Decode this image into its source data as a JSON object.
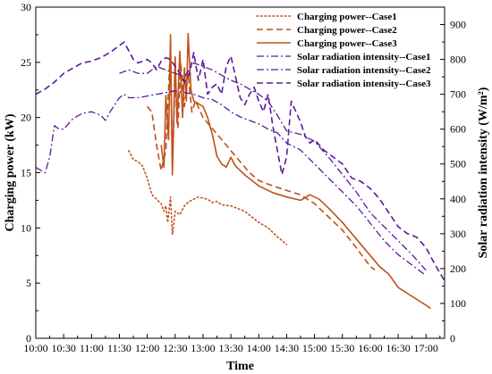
{
  "chart_data": {
    "type": "line",
    "xlabel": "Time",
    "ylabel_left": "Charging power (kW)",
    "ylabel_right": "Solar radiation intensity (W/m²)",
    "x_ticks": [
      "10:00",
      "10:30",
      "11:00",
      "11:30",
      "12:00",
      "12:30",
      "13:00",
      "13:30",
      "14:00",
      "14:30",
      "15:00",
      "15:30",
      "16:00",
      "16:30",
      "17:00"
    ],
    "xlim": [
      "10:00",
      "17:20"
    ],
    "ylim_left": [
      0,
      30
    ],
    "ylim_right": [
      0,
      950
    ],
    "yticks_left": [
      "0",
      "5",
      "10",
      "15",
      "20",
      "25",
      "30"
    ],
    "yticks_right": [
      "0",
      "100",
      "200",
      "300",
      "400",
      "500",
      "600",
      "700",
      "800",
      "900"
    ],
    "legend_position": "top-right",
    "grid": false,
    "series": [
      {
        "name": "Charging power--Case1",
        "axis": "left",
        "style": "dotted",
        "color": "#c0501a",
        "points": [
          [
            "11:40",
            17.0
          ],
          [
            "11:45",
            16.2
          ],
          [
            "11:50",
            16.0
          ],
          [
            "11:55",
            15.6
          ],
          [
            "12:00",
            14.5
          ],
          [
            "12:05",
            13.0
          ],
          [
            "12:10",
            12.6
          ],
          [
            "12:15",
            12.2
          ],
          [
            "12:18",
            11.5
          ],
          [
            "12:20",
            12.0
          ],
          [
            "12:22",
            10.5
          ],
          [
            "12:25",
            12.8
          ],
          [
            "12:27",
            9.4
          ],
          [
            "12:30",
            11.5
          ],
          [
            "12:35",
            11.2
          ],
          [
            "12:40",
            12.0
          ],
          [
            "12:45",
            12.4
          ],
          [
            "12:50",
            12.6
          ],
          [
            "12:55",
            12.8
          ],
          [
            "13:00",
            12.7
          ],
          [
            "13:05",
            12.6
          ],
          [
            "13:10",
            12.3
          ],
          [
            "13:15",
            12.4
          ],
          [
            "13:20",
            12.1
          ],
          [
            "13:30",
            12.0
          ],
          [
            "13:45",
            11.5
          ],
          [
            "14:00",
            10.5
          ],
          [
            "14:10",
            10.0
          ],
          [
            "14:20",
            9.2
          ],
          [
            "14:30",
            8.5
          ]
        ]
      },
      {
        "name": "Charging power--Case2",
        "axis": "left",
        "style": "dashed",
        "color": "#c0501a",
        "points": [
          [
            "12:00",
            21.0
          ],
          [
            "12:05",
            20.5
          ],
          [
            "12:10",
            17.5
          ],
          [
            "12:15",
            15.2
          ],
          [
            "12:20",
            17.0
          ],
          [
            "12:25",
            26.5
          ],
          [
            "12:27",
            15.5
          ],
          [
            "12:30",
            23.5
          ],
          [
            "12:33",
            19.0
          ],
          [
            "12:36",
            25.0
          ],
          [
            "12:40",
            21.0
          ],
          [
            "12:44",
            24.0
          ],
          [
            "12:48",
            20.5
          ],
          [
            "12:52",
            21.5
          ],
          [
            "13:00",
            20.0
          ],
          [
            "13:10",
            19.0
          ],
          [
            "13:20",
            18.0
          ],
          [
            "13:30",
            17.0
          ],
          [
            "13:40",
            16.0
          ],
          [
            "13:50",
            15.0
          ],
          [
            "14:00",
            14.3
          ],
          [
            "14:15",
            13.8
          ],
          [
            "14:30",
            13.4
          ],
          [
            "14:45",
            13.0
          ],
          [
            "15:00",
            12.2
          ],
          [
            "15:15",
            11.0
          ],
          [
            "15:30",
            9.8
          ],
          [
            "15:45",
            8.2
          ],
          [
            "16:00",
            6.5
          ],
          [
            "16:05",
            6.2
          ]
        ]
      },
      {
        "name": "Charging power--Case3",
        "axis": "left",
        "style": "solid",
        "color": "#c0501a",
        "points": [
          [
            "12:15",
            17.5
          ],
          [
            "12:18",
            15.5
          ],
          [
            "12:20",
            22.0
          ],
          [
            "12:23",
            18.0
          ],
          [
            "12:25",
            27.5
          ],
          [
            "12:27",
            14.8
          ],
          [
            "12:30",
            25.5
          ],
          [
            "12:32",
            19.5
          ],
          [
            "12:35",
            26.0
          ],
          [
            "12:38",
            20.0
          ],
          [
            "12:40",
            24.5
          ],
          [
            "12:42",
            21.5
          ],
          [
            "12:44",
            27.6
          ],
          [
            "12:47",
            22.5
          ],
          [
            "12:50",
            21.5
          ],
          [
            "13:00",
            21.0
          ],
          [
            "13:05",
            20.0
          ],
          [
            "13:10",
            18.5
          ],
          [
            "13:15",
            16.5
          ],
          [
            "13:20",
            15.8
          ],
          [
            "13:25",
            15.5
          ],
          [
            "13:30",
            16.4
          ],
          [
            "13:35",
            15.6
          ],
          [
            "13:45",
            14.8
          ],
          [
            "14:00",
            13.8
          ],
          [
            "14:15",
            13.2
          ],
          [
            "14:30",
            12.8
          ],
          [
            "14:45",
            12.5
          ],
          [
            "14:55",
            13.0
          ],
          [
            "15:05",
            12.6
          ],
          [
            "15:15",
            11.8
          ],
          [
            "15:30",
            10.5
          ],
          [
            "15:45",
            9.0
          ],
          [
            "16:00",
            7.5
          ],
          [
            "16:10",
            6.5
          ],
          [
            "16:20",
            5.8
          ],
          [
            "16:30",
            4.6
          ],
          [
            "16:45",
            3.8
          ],
          [
            "17:00",
            3.0
          ],
          [
            "17:05",
            2.7
          ]
        ]
      },
      {
        "name": "Solar radiation intensity--Case1",
        "axis": "right",
        "style": "dashdot",
        "color": "#5b1a9a",
        "points": [
          [
            "11:30",
            760
          ],
          [
            "11:40",
            770
          ],
          [
            "11:50",
            760
          ],
          [
            "12:00",
            760
          ],
          [
            "12:10",
            780
          ],
          [
            "12:20",
            770
          ],
          [
            "12:30",
            760
          ],
          [
            "12:40",
            750
          ],
          [
            "12:50",
            790
          ],
          [
            "13:00",
            780
          ],
          [
            "13:10",
            770
          ],
          [
            "13:20",
            755
          ],
          [
            "13:30",
            740
          ],
          [
            "13:40",
            730
          ],
          [
            "13:50",
            715
          ],
          [
            "14:00",
            700
          ],
          [
            "14:10",
            680
          ],
          [
            "14:20",
            640
          ],
          [
            "14:30",
            595
          ],
          [
            "14:45",
            585
          ],
          [
            "15:00",
            565
          ],
          [
            "15:15",
            520
          ],
          [
            "15:30",
            470
          ],
          [
            "15:45",
            420
          ],
          [
            "16:00",
            360
          ],
          [
            "16:15",
            320
          ],
          [
            "16:30",
            280
          ],
          [
            "16:45",
            240
          ],
          [
            "17:00",
            195
          ]
        ]
      },
      {
        "name": "Solar radiation intensity--Case2",
        "axis": "right",
        "style": "dashdot",
        "color": "#5b1a9a",
        "points": [
          [
            "10:00",
            490
          ],
          [
            "10:10",
            475
          ],
          [
            "10:15",
            520
          ],
          [
            "10:20",
            610
          ],
          [
            "10:25",
            600
          ],
          [
            "10:30",
            600
          ],
          [
            "10:40",
            630
          ],
          [
            "10:50",
            645
          ],
          [
            "11:00",
            650
          ],
          [
            "11:10",
            640
          ],
          [
            "11:15",
            625
          ],
          [
            "11:20",
            650
          ],
          [
            "11:30",
            690
          ],
          [
            "11:35",
            700
          ],
          [
            "11:40",
            690
          ],
          [
            "11:50",
            690
          ],
          [
            "12:00",
            695
          ],
          [
            "12:10",
            700
          ],
          [
            "12:20",
            705
          ],
          [
            "12:30",
            710
          ],
          [
            "12:40",
            705
          ],
          [
            "12:50",
            700
          ],
          [
            "13:00",
            690
          ],
          [
            "13:10",
            685
          ],
          [
            "13:20",
            670
          ],
          [
            "13:30",
            650
          ],
          [
            "13:40",
            635
          ],
          [
            "13:50",
            625
          ],
          [
            "14:00",
            615
          ],
          [
            "14:10",
            600
          ],
          [
            "14:20",
            590
          ],
          [
            "14:30",
            560
          ],
          [
            "14:45",
            540
          ],
          [
            "15:00",
            500
          ],
          [
            "15:15",
            460
          ],
          [
            "15:30",
            420
          ],
          [
            "15:45",
            380
          ],
          [
            "16:00",
            330
          ],
          [
            "16:15",
            280
          ],
          [
            "16:30",
            240
          ],
          [
            "16:45",
            210
          ],
          [
            "17:00",
            180
          ]
        ]
      },
      {
        "name": "Solar radiation intensity--Case3",
        "axis": "right",
        "style": "dashed",
        "color": "#5b1a9a",
        "points": [
          [
            "10:00",
            700
          ],
          [
            "10:10",
            715
          ],
          [
            "10:20",
            735
          ],
          [
            "10:30",
            760
          ],
          [
            "10:40",
            775
          ],
          [
            "10:50",
            790
          ],
          [
            "11:00",
            795
          ],
          [
            "11:10",
            805
          ],
          [
            "11:20",
            820
          ],
          [
            "11:30",
            840
          ],
          [
            "11:35",
            850
          ],
          [
            "11:40",
            825
          ],
          [
            "11:45",
            800
          ],
          [
            "11:50",
            790
          ],
          [
            "12:00",
            800
          ],
          [
            "12:05",
            790
          ],
          [
            "12:10",
            770
          ],
          [
            "12:15",
            795
          ],
          [
            "12:20",
            805
          ],
          [
            "12:25",
            800
          ],
          [
            "12:30",
            780
          ],
          [
            "12:35",
            760
          ],
          [
            "12:40",
            735
          ],
          [
            "12:45",
            755
          ],
          [
            "12:50",
            820
          ],
          [
            "12:55",
            740
          ],
          [
            "13:00",
            800
          ],
          [
            "13:05",
            700
          ],
          [
            "13:10",
            720
          ],
          [
            "13:15",
            730
          ],
          [
            "13:20",
            700
          ],
          [
            "13:25",
            780
          ],
          [
            "13:30",
            810
          ],
          [
            "13:35",
            750
          ],
          [
            "13:40",
            690
          ],
          [
            "13:45",
            670
          ],
          [
            "13:50",
            700
          ],
          [
            "13:55",
            720
          ],
          [
            "14:00",
            680
          ],
          [
            "14:05",
            650
          ],
          [
            "14:10",
            700
          ],
          [
            "14:15",
            610
          ],
          [
            "14:20",
            540
          ],
          [
            "14:25",
            470
          ],
          [
            "14:30",
            520
          ],
          [
            "14:35",
            680
          ],
          [
            "14:40",
            650
          ],
          [
            "14:45",
            620
          ],
          [
            "14:50",
            580
          ],
          [
            "14:55",
            560
          ],
          [
            "15:00",
            570
          ],
          [
            "15:10",
            540
          ],
          [
            "15:20",
            520
          ],
          [
            "15:30",
            500
          ],
          [
            "15:40",
            460
          ],
          [
            "15:50",
            450
          ],
          [
            "16:00",
            430
          ],
          [
            "16:10",
            400
          ],
          [
            "16:20",
            360
          ],
          [
            "16:30",
            320
          ],
          [
            "16:40",
            300
          ],
          [
            "16:50",
            290
          ],
          [
            "17:00",
            260
          ],
          [
            "17:10",
            210
          ],
          [
            "17:20",
            165
          ]
        ]
      }
    ]
  }
}
